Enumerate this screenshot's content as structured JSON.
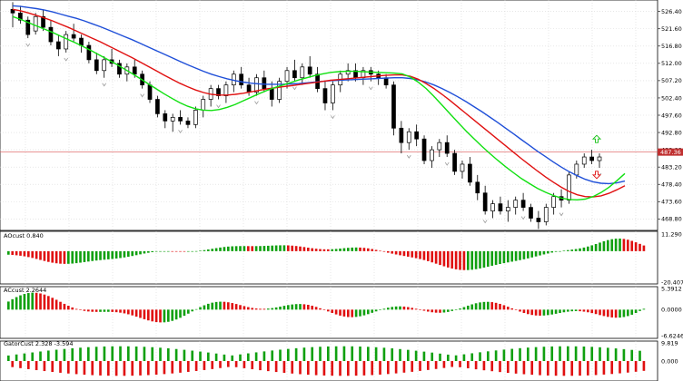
{
  "chart_data": [
    {
      "type": "candlestick",
      "name": "price",
      "price_ticks": [
        "526.40",
        "521.60",
        "516.80",
        "512.00",
        "507.20",
        "502.40",
        "497.60",
        "492.80",
        "488.00",
        "483.20",
        "478.40",
        "473.60",
        "468.80"
      ],
      "ylim": [
        465.6,
        529.6
      ],
      "current_price": "487.36",
      "current_value": 487.36,
      "candles": [
        [
          527,
          529,
          522,
          526
        ],
        [
          526,
          528,
          523,
          524
        ],
        [
          524,
          525,
          519,
          520
        ],
        [
          521,
          526,
          520,
          525
        ],
        [
          525,
          527,
          521,
          522
        ],
        [
          522,
          524,
          517,
          518
        ],
        [
          518,
          520,
          514,
          516
        ],
        [
          516,
          521,
          515,
          520
        ],
        [
          520,
          523,
          518,
          519
        ],
        [
          519,
          520,
          515,
          517
        ],
        [
          517,
          518,
          512,
          513
        ],
        [
          513,
          515,
          509,
          510
        ],
        [
          510,
          514,
          508,
          513
        ],
        [
          513,
          516,
          511,
          512
        ],
        [
          512,
          513,
          508,
          509
        ],
        [
          509,
          512,
          507,
          511
        ],
        [
          511,
          513,
          508,
          509
        ],
        [
          509,
          510,
          505,
          506
        ],
        [
          506,
          507,
          501,
          502
        ],
        [
          502,
          503,
          497,
          498
        ],
        [
          498,
          499,
          494,
          496
        ],
        [
          496,
          498,
          493,
          497
        ],
        [
          497,
          499,
          495,
          496
        ],
        [
          496,
          497,
          494,
          495
        ],
        [
          495,
          500,
          494,
          499
        ],
        [
          499,
          503,
          497,
          502
        ],
        [
          502,
          506,
          500,
          505
        ],
        [
          505,
          506,
          502,
          503
        ],
        [
          503,
          507,
          501,
          506
        ],
        [
          506,
          510,
          504,
          509
        ],
        [
          509,
          511,
          505,
          506
        ],
        [
          506,
          508,
          503,
          504
        ],
        [
          504,
          509,
          503,
          508
        ],
        [
          508,
          510,
          504,
          505
        ],
        [
          505,
          507,
          500,
          502
        ],
        [
          502,
          508,
          501,
          507
        ],
        [
          507,
          511,
          505,
          510
        ],
        [
          510,
          513,
          507,
          508
        ],
        [
          508,
          512,
          506,
          511
        ],
        [
          511,
          514,
          508,
          509
        ],
        [
          509,
          511,
          504,
          505
        ],
        [
          505,
          507,
          499,
          501
        ],
        [
          501,
          507,
          499,
          506
        ],
        [
          506,
          510,
          504,
          509
        ],
        [
          509,
          512,
          507,
          510
        ],
        [
          510,
          512,
          507,
          508
        ],
        [
          508,
          511,
          506,
          510
        ],
        [
          510,
          511,
          507,
          509
        ],
        [
          509,
          510,
          506,
          508
        ],
        [
          508,
          509,
          505,
          506
        ],
        [
          506,
          507,
          492,
          494
        ],
        [
          494,
          496,
          487,
          490
        ],
        [
          490,
          494,
          488,
          493
        ],
        [
          493,
          495,
          489,
          491
        ],
        [
          491,
          492,
          484,
          485
        ],
        [
          485,
          489,
          483,
          488
        ],
        [
          488,
          491,
          486,
          490
        ],
        [
          490,
          492,
          486,
          487
        ],
        [
          487,
          488,
          481,
          482
        ],
        [
          482,
          485,
          480,
          484
        ],
        [
          484,
          486,
          478,
          479
        ],
        [
          479,
          481,
          474,
          476
        ],
        [
          476,
          478,
          470,
          471
        ],
        [
          471,
          474,
          469,
          473
        ],
        [
          473,
          475,
          470,
          471
        ],
        [
          471,
          474,
          468,
          472
        ],
        [
          472,
          475,
          470,
          474
        ],
        [
          474,
          476,
          471,
          472
        ],
        [
          472,
          473,
          468,
          469
        ],
        [
          469,
          471,
          466,
          468
        ],
        [
          468,
          473,
          467,
          472
        ],
        [
          472,
          476,
          470,
          475
        ],
        [
          475,
          477,
          472,
          474
        ],
        [
          474,
          482,
          473,
          481
        ],
        [
          481,
          485,
          480,
          484
        ],
        [
          484,
          487,
          483,
          486
        ],
        [
          486,
          488,
          484,
          485
        ],
        [
          485,
          487,
          483,
          486
        ]
      ],
      "series": [
        {
          "name": "",
          "color": "#1f4fd8",
          "values": [
            528,
            527.8,
            527.5,
            527.2,
            526.8,
            526.3,
            525.7,
            525.1,
            524.5,
            523.8,
            523,
            522.2,
            521.3,
            520.4,
            519.5,
            518.6,
            517.6,
            516.6,
            515.6,
            514.6,
            513.6,
            512.6,
            511.6,
            510.7,
            509.8,
            509,
            508.3,
            507.7,
            507.2,
            506.8,
            506.5,
            506.3,
            506.2,
            506.2,
            506.2,
            506.3,
            506.4,
            506.6,
            506.8,
            507,
            507.2,
            507.3,
            507.4,
            507.5,
            507.6,
            507.7,
            507.8,
            507.9,
            508,
            508,
            507.8,
            507.4,
            506.8,
            506,
            505,
            503.9,
            502.7,
            501.4,
            500,
            498.6,
            497.1,
            495.6,
            494,
            492.4,
            490.8,
            489.2,
            487.6,
            486.1,
            484.6,
            483.2,
            481.9,
            480.8,
            479.8,
            479.1,
            478.7,
            478.6,
            478.8,
            479.3
          ]
        },
        {
          "name": "",
          "color": "#e01010",
          "values": [
            527,
            526.6,
            526,
            525.3,
            524.6,
            523.8,
            522.9,
            522,
            521,
            520,
            519,
            518,
            516.9,
            515.8,
            514.7,
            513.6,
            512.4,
            511.2,
            510,
            508.8,
            507.6,
            506.5,
            505.5,
            504.6,
            503.9,
            503.4,
            503.2,
            503.2,
            503.4,
            503.7,
            504.1,
            504.5,
            504.9,
            505.2,
            505.5,
            505.8,
            506.1,
            506.4,
            506.7,
            507,
            507.3,
            507.5,
            507.7,
            507.9,
            508.1,
            508.3,
            508.5,
            508.7,
            508.8,
            508.8,
            508.4,
            507.6,
            506.4,
            505,
            503.4,
            501.7,
            499.9,
            498.1,
            496.3,
            494.5,
            492.7,
            490.9,
            489.1,
            487.3,
            485.5,
            483.8,
            482.1,
            480.5,
            479,
            477.6,
            476.4,
            475.5,
            475,
            474.9,
            475.2,
            475.9,
            476.9,
            478
          ]
        },
        {
          "name": "",
          "color": "#10e010",
          "values": [
            525,
            524.2,
            523.3,
            522.4,
            521.5,
            520.6,
            519.6,
            518.6,
            517.6,
            516.5,
            515.4,
            514.2,
            513,
            511.8,
            510.5,
            509.2,
            507.8,
            506.4,
            505,
            503.6,
            502.3,
            501.1,
            500.1,
            499.4,
            499,
            498.9,
            499.2,
            499.8,
            500.6,
            501.6,
            502.6,
            503.6,
            504.5,
            505.3,
            506,
            506.7,
            507.4,
            508,
            508.6,
            509.1,
            509.5,
            509.7,
            509.8,
            509.8,
            509.7,
            509.6,
            509.5,
            509.4,
            509.3,
            509.1,
            508.2,
            506.8,
            505,
            502.8,
            500.4,
            498,
            495.6,
            493.3,
            491.1,
            489,
            487,
            485.1,
            483.3,
            481.6,
            480,
            478.6,
            477.3,
            476.2,
            475.3,
            474.6,
            474.2,
            474.1,
            474.3,
            475,
            476.1,
            477.6,
            479.4,
            481.4
          ]
        }
      ]
    },
    {
      "type": "histogram",
      "name": "AOcust",
      "label": "AOcust 0.840",
      "ticks": [
        "11.290",
        "-20.407"
      ],
      "ylim": [
        -20.407,
        11.29
      ],
      "bars": "osc1"
    },
    {
      "type": "histogram",
      "name": "ACcust",
      "label": "ACcust 2.2644",
      "ticks": [
        "5.3912",
        "0.0000",
        "-6.6246"
      ],
      "ylim": [
        -6.6246,
        5.3912
      ],
      "bars": "osc2"
    },
    {
      "type": "histogram",
      "name": "GatorCust",
      "label": "GatorCust 2.328 -3.594",
      "ticks": [
        "9.819",
        "0.000"
      ],
      "ylim": [
        -9.819,
        9.819
      ],
      "bars": "osc3"
    }
  ],
  "colors": {
    "bull": "#10a010",
    "bear": "#e01010",
    "grid": "#d8d8d8",
    "price_line": "#e07070",
    "price_label_bg": "#c03030"
  }
}
